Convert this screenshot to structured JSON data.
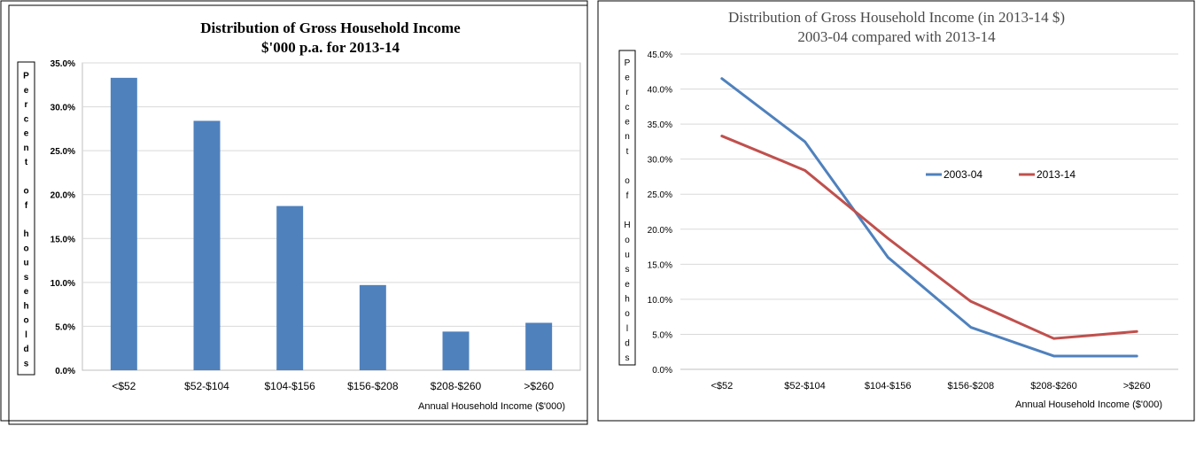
{
  "chart_data": [
    {
      "type": "bar",
      "title": "Distribution of Gross Household Income",
      "subtitle": "$'000 p.a. for 2013-14",
      "ylabel": "Percent of households",
      "xlabel": "Annual Household Income ($'000)",
      "categories": [
        "<$52",
        "$52-$104",
        "$104-$156",
        "$156-$208",
        "$208-$260",
        ">$260"
      ],
      "values": [
        33.3,
        28.4,
        18.7,
        9.7,
        4.4,
        5.4
      ],
      "ylim": [
        0,
        35
      ],
      "yticks": [
        "0.0%",
        "5.0%",
        "10.0%",
        "15.0%",
        "20.0%",
        "25.0%",
        "30.0%",
        "35.0%"
      ],
      "grid": true,
      "bar_color": "#4f81bd"
    },
    {
      "type": "line",
      "title": "Distribution of Gross Household Income (in 2013-14 $)",
      "subtitle": "2003-04 compared with 2013-14",
      "ylabel": "Percent of Households",
      "xlabel": "Annual Household Income ($'000)",
      "categories": [
        "<$52",
        "$52-$104",
        "$104-$156",
        "$156-$208",
        "$208-$260",
        ">$260"
      ],
      "series": [
        {
          "name": "2003-04",
          "values": [
            41.5,
            32.5,
            16.0,
            6.0,
            1.9,
            1.9
          ],
          "color": "#4f81bd"
        },
        {
          "name": "2013-14",
          "values": [
            33.3,
            28.4,
            18.7,
            9.7,
            4.4,
            5.4
          ],
          "color": "#c0504d"
        }
      ],
      "ylim": [
        0,
        45
      ],
      "yticks": [
        "0.0%",
        "5.0%",
        "10.0%",
        "15.0%",
        "20.0%",
        "25.0%",
        "30.0%",
        "35.0%",
        "40.0%",
        "45.0%"
      ],
      "grid": true,
      "legend_position": "center-right"
    }
  ]
}
